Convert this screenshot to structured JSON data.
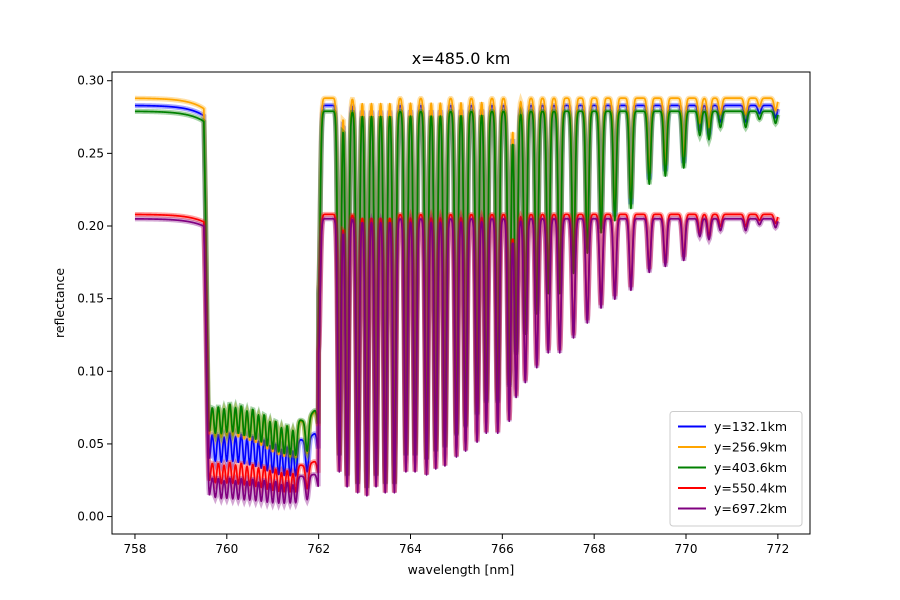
{
  "chart_data": {
    "type": "line",
    "title": "x=485.0 km",
    "xlabel": "wavelength [nm]",
    "ylabel": "reflectance",
    "xlim": [
      757.5,
      772.7
    ],
    "ylim": [
      -0.012,
      0.306
    ],
    "xticks": [
      758,
      760,
      762,
      764,
      766,
      768,
      770,
      772
    ],
    "xtick_labels": [
      "758",
      "760",
      "762",
      "764",
      "766",
      "768",
      "770",
      "772"
    ],
    "yticks": [
      0.0,
      0.05,
      0.1,
      0.15,
      0.2,
      0.25,
      0.3
    ],
    "ytick_labels": [
      "0.00",
      "0.05",
      "0.10",
      "0.15",
      "0.20",
      "0.25",
      "0.30"
    ],
    "grid": false,
    "legend_position": "lower-right",
    "x_range": [
      758,
      772
    ],
    "continuum_edge_nm": 759.5,
    "band_floor": [
      0.055,
      0.06,
      0.055,
      0.045,
      0.04,
      0.06,
      0.07,
      0.07,
      0.065,
      0.065,
      0.07,
      0.08,
      0.09,
      0.11,
      0.14,
      0.17,
      0.19
    ],
    "lines": [
      {
        "nm": 759.62,
        "depth": 0.75
      },
      {
        "nm": 759.75,
        "depth": 0.85
      },
      {
        "nm": 759.88,
        "depth": 0.9
      },
      {
        "nm": 760.0,
        "depth": 0.9
      },
      {
        "nm": 760.13,
        "depth": 0.93
      },
      {
        "nm": 760.25,
        "depth": 0.93
      },
      {
        "nm": 760.38,
        "depth": 0.94
      },
      {
        "nm": 760.5,
        "depth": 0.94
      },
      {
        "nm": 760.63,
        "depth": 0.95
      },
      {
        "nm": 760.75,
        "depth": 0.95
      },
      {
        "nm": 760.88,
        "depth": 0.96
      },
      {
        "nm": 761.0,
        "depth": 0.96
      },
      {
        "nm": 761.13,
        "depth": 0.95
      },
      {
        "nm": 761.25,
        "depth": 0.94
      },
      {
        "nm": 761.38,
        "depth": 0.92
      },
      {
        "nm": 761.5,
        "depth": 0.9
      },
      {
        "nm": 761.75,
        "depth": 0.8
      },
      {
        "nm": 762.0,
        "depth": 0.45
      },
      {
        "nm": 762.45,
        "depth": 0.85
      },
      {
        "nm": 762.62,
        "depth": 0.9
      },
      {
        "nm": 762.85,
        "depth": 0.92
      },
      {
        "nm": 763.05,
        "depth": 0.93
      },
      {
        "nm": 763.25,
        "depth": 0.9
      },
      {
        "nm": 763.45,
        "depth": 0.92
      },
      {
        "nm": 763.65,
        "depth": 0.92
      },
      {
        "nm": 763.9,
        "depth": 0.85
      },
      {
        "nm": 764.1,
        "depth": 0.85
      },
      {
        "nm": 764.35,
        "depth": 0.86
      },
      {
        "nm": 764.55,
        "depth": 0.84
      },
      {
        "nm": 764.75,
        "depth": 0.83
      },
      {
        "nm": 765.0,
        "depth": 0.8
      },
      {
        "nm": 765.2,
        "depth": 0.78
      },
      {
        "nm": 765.45,
        "depth": 0.75
      },
      {
        "nm": 765.65,
        "depth": 0.72
      },
      {
        "nm": 765.9,
        "depth": 0.72
      },
      {
        "nm": 766.15,
        "depth": 0.68
      },
      {
        "nm": 766.3,
        "depth": 0.6
      },
      {
        "nm": 766.5,
        "depth": 0.55
      },
      {
        "nm": 766.75,
        "depth": 0.5
      },
      {
        "nm": 767.0,
        "depth": 0.45
      },
      {
        "nm": 767.25,
        "depth": 0.45
      },
      {
        "nm": 767.55,
        "depth": 0.4
      },
      {
        "nm": 767.85,
        "depth": 0.35
      },
      {
        "nm": 768.15,
        "depth": 0.3
      },
      {
        "nm": 768.45,
        "depth": 0.27
      },
      {
        "nm": 768.8,
        "depth": 0.24
      },
      {
        "nm": 769.2,
        "depth": 0.18
      },
      {
        "nm": 769.55,
        "depth": 0.16
      },
      {
        "nm": 769.95,
        "depth": 0.14
      },
      {
        "nm": 770.3,
        "depth": 0.06
      },
      {
        "nm": 770.5,
        "depth": 0.07
      },
      {
        "nm": 770.75,
        "depth": 0.04
      },
      {
        "nm": 771.3,
        "depth": 0.04
      },
      {
        "nm": 771.6,
        "depth": 0.02
      },
      {
        "nm": 771.95,
        "depth": 0.03
      }
    ],
    "series": [
      {
        "name": "y=132.1km",
        "color": "#0000ff",
        "continuum": 0.283,
        "floor_scale": 0.68
      },
      {
        "name": "y=256.9km",
        "color": "#ffa500",
        "continuum": 0.288,
        "floor_scale": 1.0
      },
      {
        "name": "y=403.6km",
        "color": "#008000",
        "continuum": 0.279,
        "floor_scale": 1.08
      },
      {
        "name": "y=550.4km",
        "color": "#ff0000",
        "continuum": 0.208,
        "floor_scale": 0.55
      },
      {
        "name": "y=697.2km",
        "color": "#800080",
        "continuum": 0.205,
        "floor_scale": 0.28
      }
    ]
  }
}
